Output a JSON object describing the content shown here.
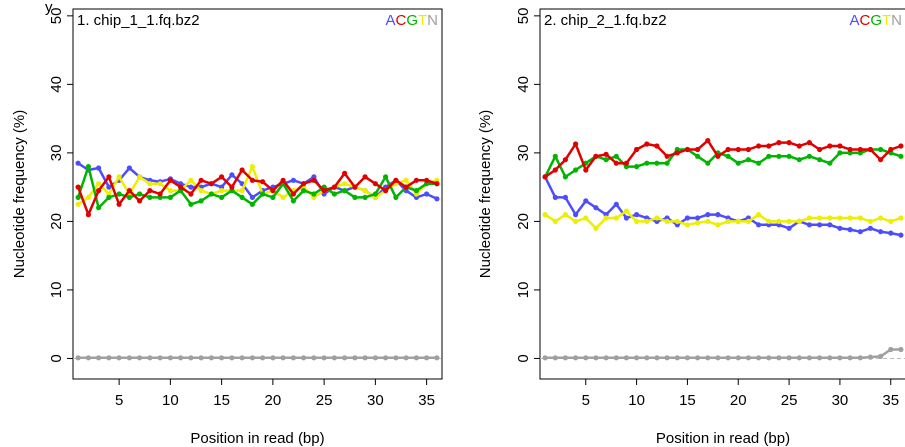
{
  "header_fragment": "y",
  "chart_data": [
    {
      "type": "line",
      "title": "1. chip_1_1.fq.bz2",
      "xlabel": "Position in read (bp)",
      "ylabel": "Nucleotide frequency (%)",
      "xlim": [
        1,
        36
      ],
      "ylim": [
        0,
        50
      ],
      "xticks": [
        5,
        10,
        15,
        20,
        25,
        30,
        35
      ],
      "yticks": [
        0,
        10,
        20,
        30,
        40,
        50
      ],
      "grid": false,
      "legend_position": "top-right",
      "legend": [
        "A",
        "C",
        "G",
        "T",
        "N"
      ],
      "x": [
        1,
        2,
        3,
        4,
        5,
        6,
        7,
        8,
        9,
        10,
        11,
        12,
        13,
        14,
        15,
        16,
        17,
        18,
        19,
        20,
        21,
        22,
        23,
        24,
        25,
        26,
        27,
        28,
        29,
        30,
        31,
        32,
        33,
        34,
        35,
        36
      ],
      "series": [
        {
          "name": "A",
          "color": "#4d4dff",
          "values": [
            28.5,
            27.5,
            27.8,
            25.0,
            26.0,
            27.8,
            26.5,
            26.0,
            25.8,
            26.2,
            25.5,
            25.0,
            25.0,
            25.5,
            25.0,
            26.8,
            25.5,
            23.5,
            24.5,
            25.0,
            25.5,
            26.0,
            25.5,
            26.5,
            24.0,
            25.0,
            24.5,
            25.0,
            24.5,
            23.5,
            25.0,
            26.0,
            24.5,
            23.5,
            24.0,
            23.3
          ]
        },
        {
          "name": "C",
          "color": "#e00000",
          "values": [
            25.0,
            21.0,
            24.5,
            26.5,
            22.5,
            24.5,
            23.0,
            24.5,
            24.0,
            26.0,
            25.0,
            24.0,
            26.0,
            25.5,
            26.5,
            25.0,
            27.5,
            26.0,
            25.8,
            24.5,
            26.0,
            24.0,
            25.5,
            26.0,
            24.5,
            25.0,
            27.0,
            25.0,
            26.5,
            25.5,
            24.5,
            26.0,
            25.0,
            26.0,
            26.0,
            25.5
          ]
        },
        {
          "name": "G",
          "color": "#00b400",
          "values": [
            23.5,
            28.0,
            22.0,
            23.5,
            24.0,
            23.5,
            24.0,
            23.5,
            23.5,
            23.5,
            24.5,
            22.5,
            23.0,
            24.0,
            23.5,
            24.5,
            23.5,
            22.5,
            24.0,
            23.5,
            25.5,
            23.0,
            24.5,
            24.0,
            25.0,
            24.0,
            24.5,
            23.5,
            23.5,
            24.0,
            26.5,
            23.5,
            25.0,
            24.5,
            25.5,
            25.5
          ]
        },
        {
          "name": "T",
          "color": "#eeee00",
          "values": [
            22.5,
            23.5,
            25.5,
            24.0,
            26.5,
            24.0,
            26.5,
            25.5,
            25.5,
            24.5,
            24.5,
            26.0,
            24.5,
            24.0,
            24.5,
            24.5,
            24.5,
            28.0,
            24.0,
            24.5,
            23.5,
            24.5,
            25.0,
            23.5,
            24.5,
            25.0,
            25.5,
            25.0,
            24.5,
            23.5,
            24.5,
            25.5,
            26.0,
            24.0,
            25.5,
            26.0
          ]
        },
        {
          "name": "N",
          "color": "#a0a0a0",
          "values": [
            0.1,
            0.1,
            0.1,
            0.1,
            0.1,
            0.1,
            0.1,
            0.1,
            0.1,
            0.1,
            0.1,
            0.1,
            0.1,
            0.1,
            0.1,
            0.1,
            0.1,
            0.1,
            0.1,
            0.1,
            0.1,
            0.1,
            0.1,
            0.1,
            0.1,
            0.1,
            0.1,
            0.1,
            0.1,
            0.1,
            0.1,
            0.1,
            0.1,
            0.1,
            0.1,
            0.1
          ]
        }
      ]
    },
    {
      "type": "line",
      "title": "2. chip_2_1.fq.bz2",
      "xlabel": "Position in read (bp)",
      "ylabel": "Nucleotide frequency (%)",
      "xlim": [
        1,
        36
      ],
      "ylim": [
        0,
        50
      ],
      "xticks": [
        5,
        10,
        15,
        20,
        25,
        30,
        35
      ],
      "yticks": [
        0,
        10,
        20,
        30,
        40,
        50
      ],
      "grid": false,
      "legend_position": "top-right",
      "legend": [
        "A",
        "C",
        "G",
        "T",
        "N"
      ],
      "x": [
        1,
        2,
        3,
        4,
        5,
        6,
        7,
        8,
        9,
        10,
        11,
        12,
        13,
        14,
        15,
        16,
        17,
        18,
        19,
        20,
        21,
        22,
        23,
        24,
        25,
        26,
        27,
        28,
        29,
        30,
        31,
        32,
        33,
        34,
        35,
        36
      ],
      "series": [
        {
          "name": "A",
          "color": "#4d4dff",
          "values": [
            26.5,
            23.5,
            23.5,
            21.0,
            23.0,
            22.0,
            21.0,
            22.5,
            20.5,
            21.0,
            20.5,
            20.0,
            20.5,
            19.5,
            20.5,
            20.5,
            21.0,
            21.0,
            20.5,
            20.0,
            20.5,
            19.5,
            19.5,
            19.5,
            19.0,
            20.0,
            19.5,
            19.5,
            19.5,
            19.0,
            18.8,
            18.5,
            19.0,
            18.5,
            18.3,
            18.0
          ]
        },
        {
          "name": "C",
          "color": "#e00000",
          "values": [
            26.5,
            27.5,
            29.0,
            31.3,
            27.5,
            29.5,
            29.8,
            28.5,
            28.5,
            30.5,
            31.3,
            31.0,
            29.5,
            30.0,
            30.5,
            30.5,
            31.8,
            29.5,
            30.5,
            30.5,
            30.5,
            31.0,
            31.0,
            31.5,
            31.5,
            31.0,
            31.5,
            30.5,
            31.0,
            31.0,
            30.5,
            30.5,
            30.5,
            29.0,
            30.5,
            31.0
          ]
        },
        {
          "name": "G",
          "color": "#00b400",
          "values": [
            26.5,
            29.5,
            26.5,
            27.5,
            28.5,
            29.5,
            29.0,
            29.5,
            28.0,
            28.0,
            28.5,
            28.5,
            28.5,
            30.5,
            30.5,
            29.5,
            28.5,
            30.0,
            29.5,
            28.5,
            29.0,
            28.5,
            29.5,
            29.5,
            29.5,
            29.0,
            29.5,
            29.0,
            28.5,
            30.0,
            30.0,
            30.0,
            30.5,
            30.5,
            30.0,
            29.5
          ]
        },
        {
          "name": "T",
          "color": "#eeee00",
          "values": [
            21.0,
            20.0,
            21.0,
            20.0,
            20.5,
            19.0,
            20.5,
            20.5,
            21.5,
            20.0,
            20.0,
            20.5,
            20.0,
            20.0,
            19.5,
            19.8,
            20.0,
            19.5,
            20.0,
            20.0,
            20.0,
            21.0,
            20.0,
            20.0,
            20.0,
            20.0,
            20.5,
            20.5,
            20.5,
            20.5,
            20.5,
            20.5,
            20.0,
            20.5,
            20.0,
            20.5
          ]
        },
        {
          "name": "N",
          "color": "#a0a0a0",
          "values": [
            0.1,
            0.1,
            0.1,
            0.1,
            0.1,
            0.1,
            0.1,
            0.1,
            0.1,
            0.1,
            0.1,
            0.1,
            0.1,
            0.1,
            0.1,
            0.1,
            0.1,
            0.1,
            0.1,
            0.1,
            0.1,
            0.1,
            0.1,
            0.1,
            0.1,
            0.1,
            0.1,
            0.1,
            0.1,
            0.1,
            0.1,
            0.1,
            0.2,
            0.3,
            1.3,
            1.3
          ]
        }
      ]
    }
  ]
}
